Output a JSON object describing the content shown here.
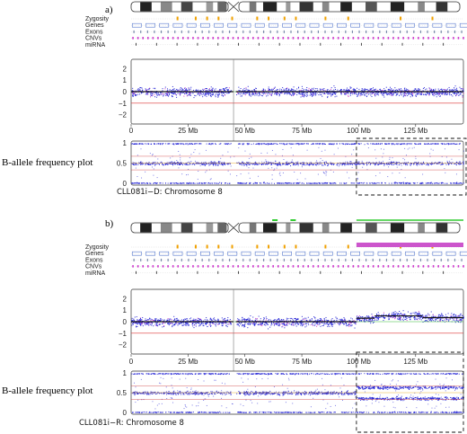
{
  "chart_data": [
    {
      "type": "scatter",
      "panel_label": "a)",
      "title": "CLL081i−D: Chromosome 8",
      "track_labels": [
        "Zygosity",
        "Genes",
        "Exons",
        "CNVs",
        "miRNA"
      ],
      "baf_label": "B-allele frequency plot",
      "x_ticks": [
        "0",
        "25 Mb",
        "50 Mb",
        "75 Mb",
        "100 Mb",
        "125 Mb"
      ],
      "x_range_mb": [
        0,
        146
      ],
      "logr_yticks": [
        "2",
        "1",
        "0",
        "−1",
        "−2"
      ],
      "logr_ylim": [
        -2.8,
        2.8
      ],
      "baf_yticks": [
        "1",
        "0.5",
        "0"
      ],
      "baf_ylim": [
        -0.05,
        1.05
      ],
      "centromere_mb": 45,
      "highlight_region_mb": [
        99,
        146
      ],
      "logr_segments": [
        {
          "x": [
            0,
            45
          ],
          "y": 0.0
        },
        {
          "x": [
            46,
            146
          ],
          "y": 0.0
        }
      ],
      "baf_bands": [
        {
          "x": [
            0,
            146
          ],
          "y": 0.5
        }
      ],
      "gain_region": null
    },
    {
      "type": "scatter",
      "panel_label": "b)",
      "title": "CLL081i−R: Chromosome 8",
      "track_labels": [
        "Zygosity",
        "Genes",
        "Exons",
        "CNVs",
        "miRNA"
      ],
      "baf_label": "B-allele frequency plot",
      "x_ticks": [
        "0",
        "25 Mb",
        "50 Mb",
        "75 Mb",
        "100 Mb",
        "125 Mb"
      ],
      "x_range_mb": [
        0,
        146
      ],
      "logr_yticks": [
        "2",
        "1",
        "0",
        "−1",
        "−2"
      ],
      "logr_ylim": [
        -2.8,
        2.8
      ],
      "baf_yticks": [
        "1",
        "0.5",
        "0"
      ],
      "baf_ylim": [
        -0.05,
        1.05
      ],
      "centromere_mb": 45,
      "highlight_region_mb": [
        99,
        146
      ],
      "logr_segments": [
        {
          "x": [
            0,
            45
          ],
          "y": 0.0
        },
        {
          "x": [
            46,
            99
          ],
          "y": 0.0
        },
        {
          "x": [
            99,
            107
          ],
          "y": 0.3
        },
        {
          "x": [
            107,
            128
          ],
          "y": 0.5
        },
        {
          "x": [
            128,
            146
          ],
          "y": 0.35
        }
      ],
      "baf_bands": [
        {
          "x": [
            0,
            99
          ],
          "y": 0.5
        },
        {
          "x": [
            99,
            146
          ],
          "y": 0.64
        },
        {
          "x": [
            99,
            146
          ],
          "y": 0.36
        }
      ],
      "gain_region": [
        99,
        146
      ]
    }
  ],
  "colors": {
    "points": "#2b2bd6",
    "segment_line": "#111111",
    "zero_line": "#33bb33",
    "minus_line": "#dd3333",
    "baf_bound_line": "#cc3333",
    "zygosity_marks": "#f0a000",
    "cnv_marks": "#cc33cc",
    "gain_marks": "#33cc33",
    "gene_boxes": "#5577cc"
  }
}
